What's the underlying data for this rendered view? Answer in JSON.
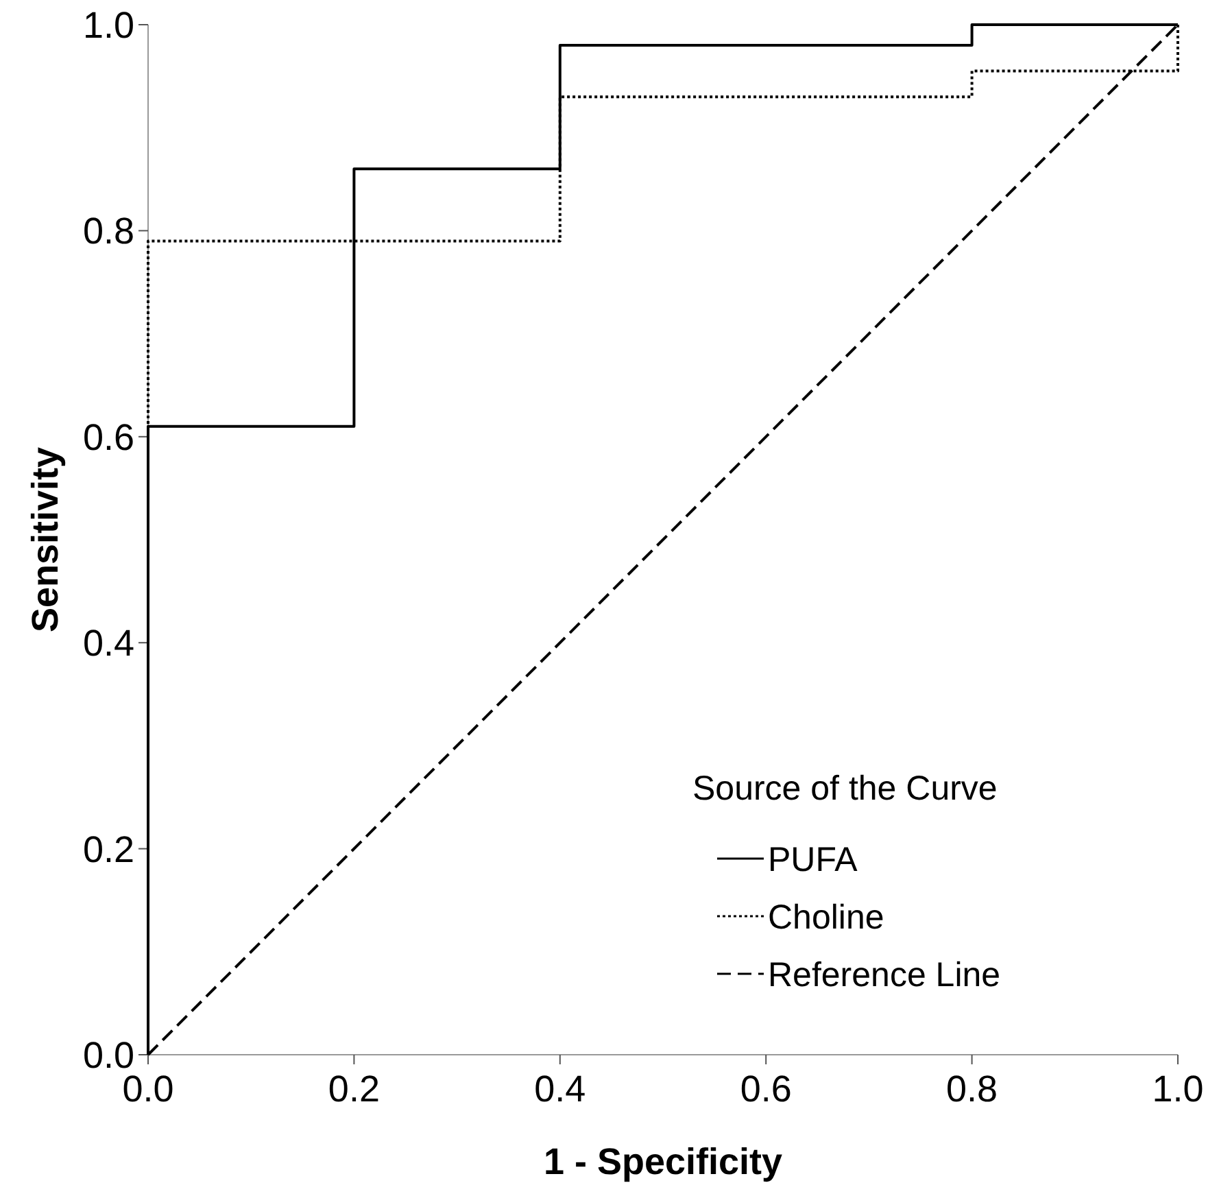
{
  "chart_data": {
    "type": "line",
    "xlabel": "1 - Specificity",
    "ylabel": "Sensitivity",
    "legend_title": "Source of the Curve",
    "legend": "bottom right",
    "grid": false,
    "xlim": [
      0,
      1
    ],
    "ylim": [
      0,
      1
    ],
    "xticks": [
      {
        "value": 0,
        "label": "0.0"
      },
      {
        "value": 0.2,
        "label": "0.2"
      },
      {
        "value": 0.4,
        "label": "0.4"
      },
      {
        "value": 0.6,
        "label": "0.6"
      },
      {
        "value": 0.8,
        "label": "0.8"
      },
      {
        "value": 1,
        "label": "1.0"
      }
    ],
    "yticks": [
      {
        "value": 0,
        "label": "0.0"
      },
      {
        "value": 0.2,
        "label": "0.2"
      },
      {
        "value": 0.4,
        "label": "0.4"
      },
      {
        "value": 0.6,
        "label": "0.6"
      },
      {
        "value": 0.8,
        "label": "0.8"
      },
      {
        "value": 1,
        "label": "1.0"
      }
    ],
    "series": [
      {
        "name": "PUFA",
        "color": "#000000",
        "line_style": "solid",
        "x": [
          0,
          0,
          0.2,
          0.2,
          0.4,
          0.4,
          0.8,
          0.8,
          1
        ],
        "values": [
          0,
          0.61,
          0.61,
          0.86,
          0.86,
          0.98,
          0.98,
          1,
          1
        ]
      },
      {
        "name": "Choline",
        "color": "#000000",
        "line_style": "dotted",
        "x": [
          0,
          0,
          0.4,
          0.4,
          0.8,
          0.8,
          1,
          1
        ],
        "values": [
          0,
          0.79,
          0.79,
          0.93,
          0.93,
          0.955,
          0.955,
          1
        ]
      },
      {
        "name": "Reference Line",
        "color": "#000000",
        "line_style": "dashed",
        "x": [
          0,
          1
        ],
        "values": [
          0,
          1
        ]
      }
    ]
  }
}
